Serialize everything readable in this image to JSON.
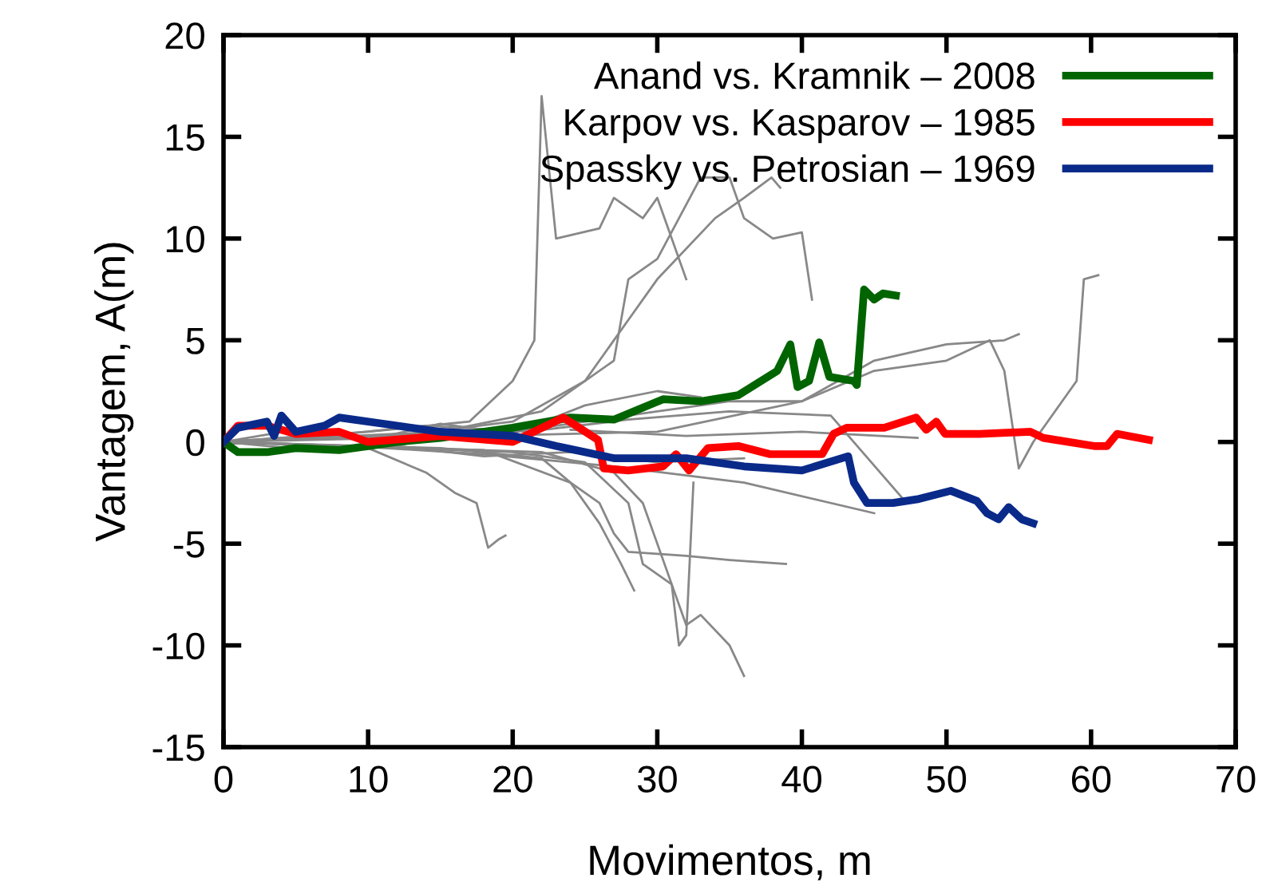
{
  "chart_data": {
    "type": "line",
    "xlabel": "Movimentos, m",
    "ylabel": "Vantagem, A(m)",
    "xlim": [
      0,
      70
    ],
    "ylim": [
      -15,
      20
    ],
    "xticks": [
      0,
      10,
      20,
      30,
      40,
      50,
      60,
      70
    ],
    "yticks": [
      -15,
      -10,
      -5,
      0,
      5,
      10,
      15,
      20
    ],
    "grid": false,
    "legend": "top right",
    "marker": "none",
    "line_style": "solid",
    "series": [
      {
        "color": "#888888",
        "x": [
          0,
          10,
          17,
          20,
          21.5,
          22,
          23,
          26,
          27,
          29,
          30,
          32
        ],
        "values": [
          0,
          0.5,
          1,
          3,
          5,
          17,
          10,
          10.5,
          12,
          11,
          12,
          8
        ]
      },
      {
        "color": "#888888",
        "x": [
          0,
          15,
          22,
          27,
          28,
          30,
          33,
          35,
          36,
          38,
          40,
          40.7
        ],
        "values": [
          0,
          0.5,
          1.5,
          4,
          8,
          9,
          13,
          13,
          11,
          10,
          10.3,
          7
        ]
      },
      {
        "color": "#888888",
        "x": [
          0,
          12,
          20,
          25,
          28,
          30,
          34,
          36,
          37.9,
          38.5
        ],
        "values": [
          0,
          0.3,
          1,
          3,
          6,
          8,
          11,
          12,
          13,
          12.5
        ]
      },
      {
        "color": "#888888",
        "x": [
          0,
          10,
          14,
          16,
          17.5,
          18.3,
          19,
          19.5
        ],
        "values": [
          0,
          -0.3,
          -1.5,
          -2.5,
          -3,
          -5.2,
          -4.8,
          -4.6
        ]
      },
      {
        "color": "#888888",
        "x": [
          0,
          15,
          22,
          24,
          26,
          27,
          28,
          32,
          35,
          38.9
        ],
        "values": [
          0,
          -0.3,
          -0.8,
          -2,
          -3,
          -4.5,
          -5.4,
          -5.6,
          -5.8,
          -6
        ]
      },
      {
        "color": "#888888",
        "x": [
          0,
          20,
          25,
          28,
          29,
          31,
          32,
          33,
          35,
          36
        ],
        "values": [
          0,
          -0.5,
          -1,
          -3,
          -6,
          -7,
          -9,
          -8.5,
          -10,
          -11.5
        ]
      },
      {
        "color": "#888888",
        "x": [
          0,
          22,
          27,
          29,
          30,
          31,
          31.5,
          32,
          32.5
        ],
        "values": [
          0,
          -0.5,
          -1.5,
          -3,
          -5,
          -7,
          -10,
          -9.5,
          -2
        ]
      },
      {
        "color": "#888888",
        "x": [
          0,
          18,
          24,
          26,
          27.5,
          28.4
        ],
        "values": [
          0,
          -0.4,
          -2,
          -4,
          -6,
          -7.3
        ]
      },
      {
        "color": "#888888",
        "x": [
          0,
          30,
          40,
          45,
          50,
          53,
          54,
          55,
          56,
          57,
          58,
          59,
          59.5,
          60.5
        ],
        "values": [
          0,
          0.5,
          2,
          3.5,
          4,
          5,
          3.5,
          -1.3,
          0,
          1,
          2,
          3,
          8,
          8.2
        ]
      },
      {
        "color": "#888888",
        "x": [
          0,
          20,
          30,
          35,
          40,
          45,
          50,
          54,
          55
        ],
        "values": [
          0,
          0.5,
          1.5,
          2,
          2,
          4,
          4.8,
          5,
          5.3
        ]
      },
      {
        "color": "#888888",
        "x": [
          0,
          8,
          16,
          24,
          32,
          40,
          48
        ],
        "values": [
          0,
          0.4,
          null,
          0.6,
          0.3,
          0.5,
          0.2
        ]
      },
      {
        "color": "#888888",
        "x": [
          0,
          6,
          12,
          18,
          24,
          30,
          36
        ],
        "values": [
          0,
          -0.4,
          -0.2,
          -0.7,
          -0.5,
          -1.0,
          -0.8
        ]
      },
      {
        "color": "#888888",
        "x": [
          0,
          7,
          14,
          21,
          28,
          35,
          42,
          47
        ],
        "values": [
          0,
          0.3,
          0.8,
          0.5,
          1.1,
          1.5,
          1.3,
          -2.8
        ]
      },
      {
        "color": "#888888",
        "x": [
          0,
          9,
          18,
          27,
          36,
          45
        ],
        "values": [
          0,
          -0.2,
          -0.6,
          -1.2,
          -2.0,
          -3.5
        ]
      },
      {
        "color": "#888888",
        "x": [
          0,
          5,
          10,
          15,
          20,
          25,
          30,
          33
        ],
        "values": [
          0,
          0.6,
          0.1,
          0.9,
          0.4,
          1.8,
          2.5,
          2.2
        ]
      },
      {
        "name": "Anand vs. Kramnik – 2008",
        "color": "#006400",
        "x": [
          0,
          1,
          3,
          5,
          8,
          10,
          12,
          15,
          20,
          24,
          27,
          30.4,
          33,
          35.6,
          38.3,
          39.2,
          39.7,
          40.5,
          41.2,
          41.9,
          43.6,
          43.8,
          44.3,
          45,
          45.6,
          46.5
        ],
        "values": [
          0,
          -0.5,
          -0.5,
          -0.3,
          -0.4,
          -0.2,
          0,
          0.2,
          0.7,
          1.2,
          1.1,
          2.1,
          2.0,
          2.3,
          3.5,
          4.8,
          2.7,
          3.0,
          4.9,
          3.2,
          3.0,
          2.8,
          7.5,
          7.0,
          7.3,
          7.2
        ]
      },
      {
        "name": "Karpov vs. Kasparov – 1985",
        "color": "#ff0000",
        "x": [
          0,
          1,
          3,
          5,
          8,
          10,
          15,
          20,
          23.5,
          25.9,
          26.3,
          28,
          30.4,
          31.3,
          32.2,
          33.5,
          35.6,
          37.8,
          41.4,
          42.2,
          43.1,
          45.7,
          47.9,
          48.6,
          49.3,
          49.9,
          52.3,
          55.8,
          56.7,
          60.2,
          61.1,
          61.8,
          64
        ],
        "values": [
          0,
          0.8,
          0.8,
          0.4,
          0.5,
          0,
          0.3,
          0,
          1.2,
          0.1,
          -1.3,
          -1.4,
          -1.2,
          -0.6,
          -1.4,
          -0.3,
          -0.2,
          -0.6,
          -0.6,
          0.4,
          0.7,
          0.7,
          1.2,
          0.6,
          1.0,
          0.4,
          0.4,
          0.5,
          0.2,
          -0.2,
          -0.2,
          0.4,
          0.1
        ]
      },
      {
        "name": "Spassky vs. Petrosian – 1969",
        "color": "#0a2a8a",
        "x": [
          0,
          1,
          3,
          3.5,
          4,
          5,
          7,
          8,
          11,
          15,
          20,
          23,
          27,
          32,
          36,
          40,
          43.2,
          43.6,
          44.5,
          46.3,
          48.1,
          50.3,
          52.1,
          52.8,
          53.6,
          54.3,
          55.2,
          56
        ],
        "values": [
          0,
          0.7,
          1.0,
          0.3,
          1.3,
          0.5,
          0.8,
          1.2,
          0.9,
          0.5,
          0.3,
          -0.2,
          -0.8,
          -0.8,
          -1.2,
          -1.4,
          -0.7,
          -2.0,
          -3.0,
          -3.0,
          -2.8,
          -2.4,
          -2.9,
          -3.5,
          -3.8,
          -3.2,
          -3.8,
          -4.0
        ]
      }
    ]
  }
}
